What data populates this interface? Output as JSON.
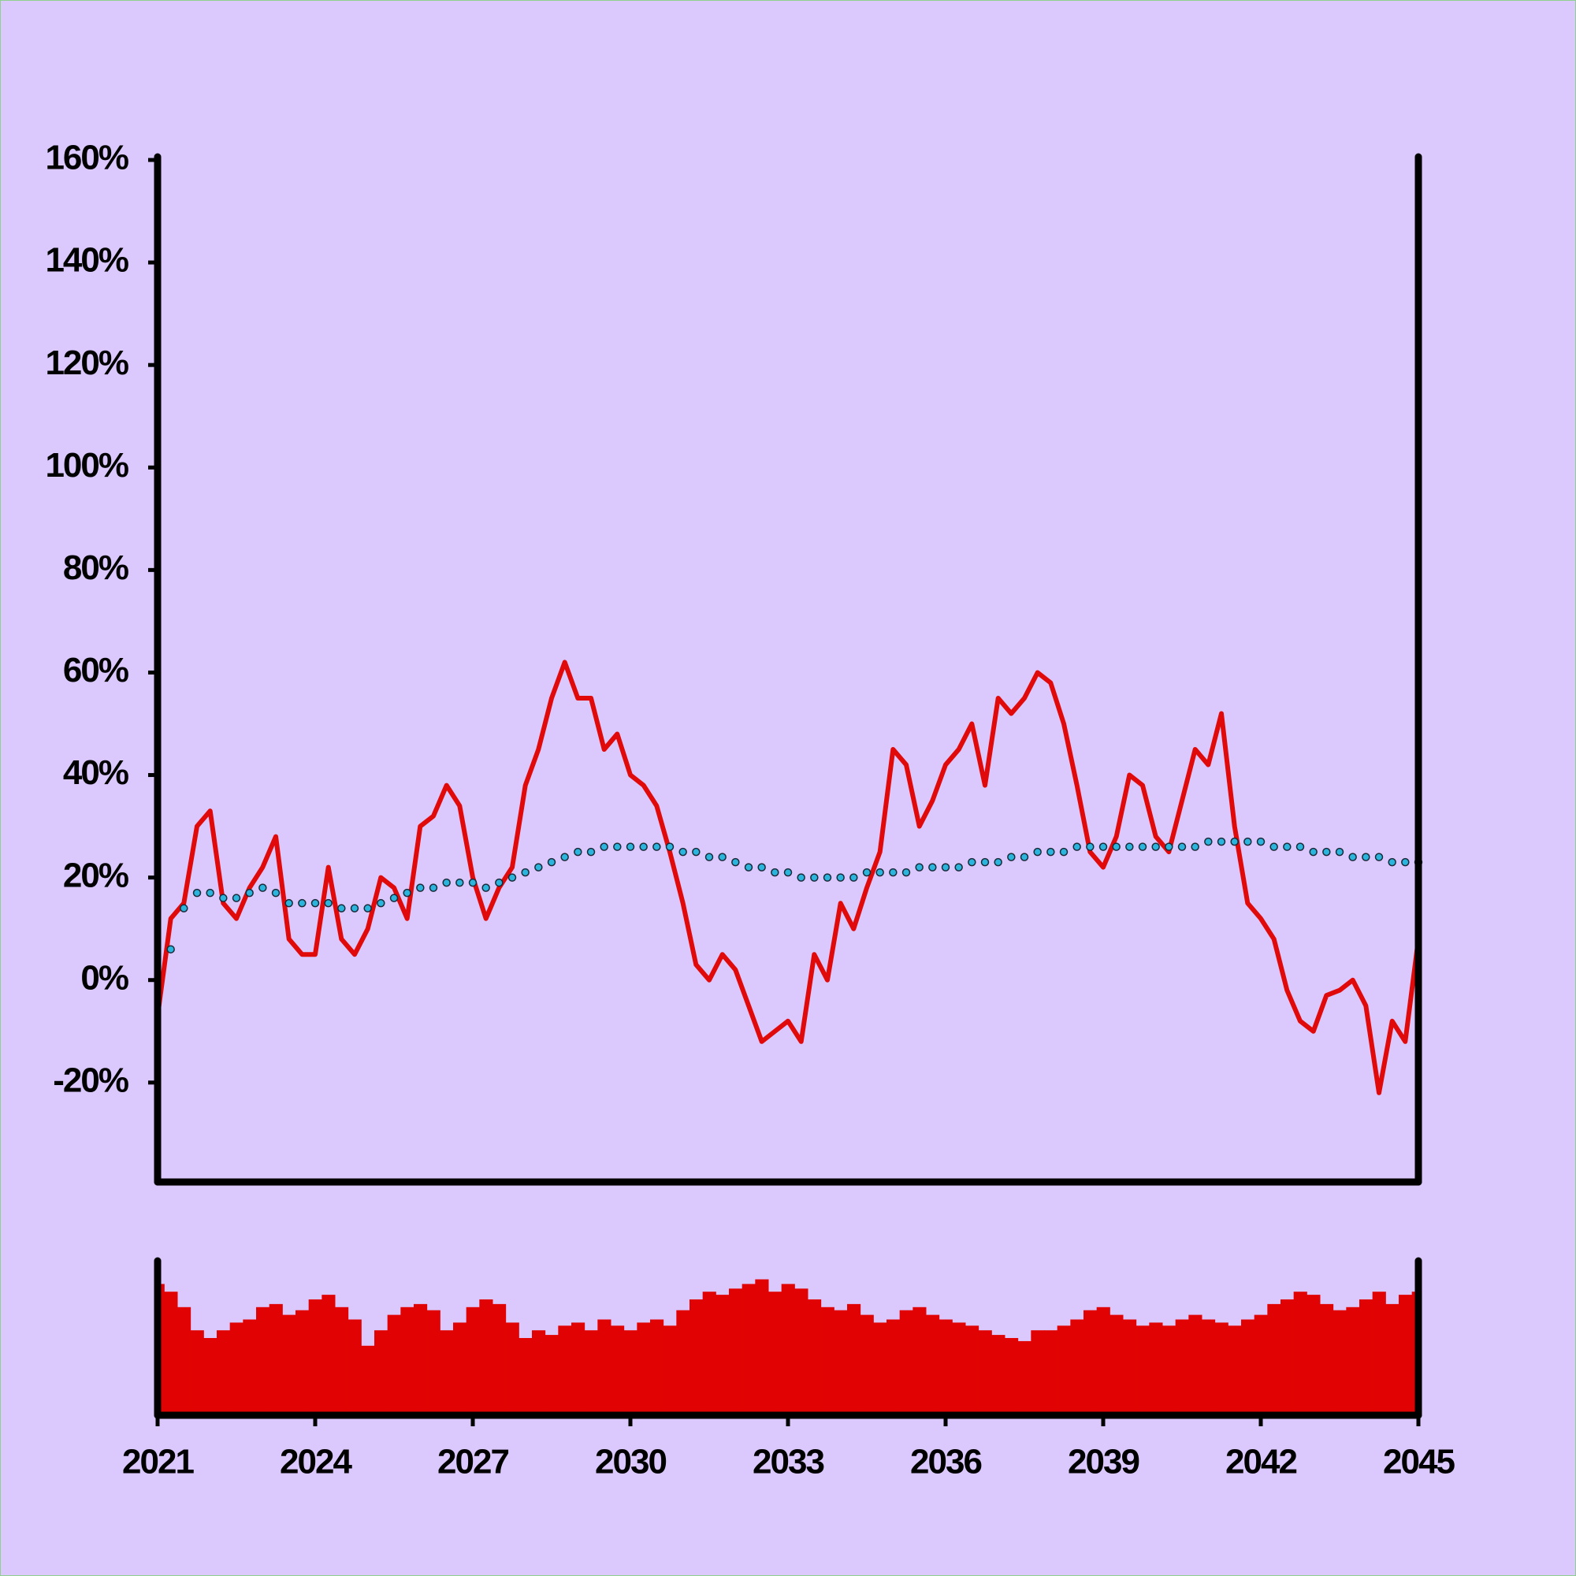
{
  "chart_data": [
    {
      "type": "line",
      "x": [
        2021,
        2021.25,
        2021.5,
        2021.75,
        2022,
        2022.25,
        2022.5,
        2022.75,
        2023,
        2023.25,
        2023.5,
        2023.75,
        2024,
        2024.25,
        2024.5,
        2024.75,
        2025,
        2025.25,
        2025.5,
        2025.75,
        2026,
        2026.25,
        2026.5,
        2026.75,
        2027,
        2027.25,
        2027.5,
        2027.75,
        2028,
        2028.25,
        2028.5,
        2028.75,
        2029,
        2029.25,
        2029.5,
        2029.75,
        2030,
        2030.25,
        2030.5,
        2030.75,
        2031,
        2031.25,
        2031.5,
        2031.75,
        2032,
        2032.25,
        2032.5,
        2032.75,
        2033,
        2033.25,
        2033.5,
        2033.75,
        2034,
        2034.25,
        2034.5,
        2034.75,
        2035,
        2035.25,
        2035.5,
        2035.75,
        2036,
        2036.25,
        2036.5,
        2036.75,
        2037,
        2037.25,
        2037.5,
        2037.75,
        2038,
        2038.25,
        2038.5,
        2038.75,
        2039,
        2039.25,
        2039.5,
        2039.75,
        2040,
        2040.25,
        2040.5,
        2040.75,
        2041,
        2041.25,
        2041.5,
        2041.75,
        2042,
        2042.25,
        2042.5,
        2042.75,
        2043,
        2043.25,
        2043.5,
        2043.75,
        2044,
        2044.25,
        2044.5,
        2044.75,
        2045
      ],
      "series": [
        {
          "color": "#e10a0a",
          "style": "line",
          "values": [
            -7,
            12,
            15,
            30,
            33,
            15,
            12,
            18,
            22,
            28,
            8,
            5,
            5,
            22,
            8,
            5,
            10,
            20,
            18,
            12,
            30,
            32,
            38,
            34,
            20,
            12,
            18,
            22,
            38,
            45,
            55,
            62,
            55,
            55,
            45,
            48,
            40,
            38,
            34,
            25,
            15,
            3,
            0,
            5,
            2,
            -5,
            -12,
            -10,
            -8,
            -12,
            5,
            0,
            15,
            10,
            18,
            25,
            45,
            42,
            30,
            35,
            42,
            45,
            50,
            38,
            55,
            52,
            55,
            60,
            58,
            50,
            38,
            25,
            22,
            28,
            40,
            38,
            28,
            25,
            35,
            45,
            42,
            52,
            30,
            15,
            12,
            8,
            -2,
            -8,
            -10,
            -3,
            -2,
            0,
            -5,
            -22,
            -8,
            -12,
            8
          ]
        },
        {
          "color": "#2bb5dd",
          "style": "dots",
          "values": [
            null,
            6,
            14,
            17,
            17,
            16,
            16,
            17,
            18,
            17,
            15,
            15,
            15,
            15,
            14,
            14,
            14,
            15,
            16,
            17,
            18,
            18,
            19,
            19,
            19,
            18,
            19,
            20,
            21,
            22,
            23,
            24,
            25,
            25,
            26,
            26,
            26,
            26,
            26,
            26,
            25,
            25,
            24,
            24,
            23,
            22,
            22,
            21,
            21,
            20,
            20,
            20,
            20,
            20,
            21,
            21,
            21,
            21,
            22,
            22,
            22,
            22,
            23,
            23,
            23,
            24,
            24,
            25,
            25,
            25,
            26,
            26,
            26,
            26,
            26,
            26,
            26,
            26,
            26,
            26,
            27,
            27,
            27,
            27,
            27,
            26,
            26,
            26,
            25,
            25,
            25,
            24,
            24,
            24,
            23,
            23,
            23
          ]
        }
      ],
      "xlim": [
        2021,
        2045
      ],
      "ylim": [
        -39.4,
        160
      ],
      "yticks": [
        {
          "value": -20,
          "label": "-20%"
        },
        {
          "value": 0,
          "label": "0%"
        },
        {
          "value": 20,
          "label": "20%"
        },
        {
          "value": 40,
          "label": "40%"
        },
        {
          "value": 60,
          "label": "60%"
        },
        {
          "value": 80,
          "label": "80%"
        },
        {
          "value": 100,
          "label": "100%"
        },
        {
          "value": 120,
          "label": "120%"
        },
        {
          "value": 140,
          "label": "140%"
        },
        {
          "value": 160,
          "label": "160%"
        }
      ]
    },
    {
      "type": "bar",
      "color": "#e10303",
      "x": [
        2021,
        2021.25,
        2021.5,
        2021.75,
        2022,
        2022.25,
        2022.5,
        2022.75,
        2023,
        2023.25,
        2023.5,
        2023.75,
        2024,
        2024.25,
        2024.5,
        2024.75,
        2025,
        2025.25,
        2025.5,
        2025.75,
        2026,
        2026.25,
        2026.5,
        2026.75,
        2027,
        2027.25,
        2027.5,
        2027.75,
        2028,
        2028.25,
        2028.5,
        2028.75,
        2029,
        2029.25,
        2029.5,
        2029.75,
        2030,
        2030.25,
        2030.5,
        2030.75,
        2031,
        2031.25,
        2031.5,
        2031.75,
        2032,
        2032.25,
        2032.5,
        2032.75,
        2033,
        2033.25,
        2033.5,
        2033.75,
        2034,
        2034.25,
        2034.5,
        2034.75,
        2035,
        2035.25,
        2035.5,
        2035.75,
        2036,
        2036.25,
        2036.5,
        2036.75,
        2037,
        2037.25,
        2037.5,
        2037.75,
        2038,
        2038.25,
        2038.5,
        2038.75,
        2039,
        2039.25,
        2039.5,
        2039.75,
        2040,
        2040.25,
        2040.5,
        2040.75,
        2041,
        2041.25,
        2041.5,
        2041.75,
        2042,
        2042.25,
        2042.5,
        2042.75,
        2043,
        2043.25,
        2043.5,
        2043.75,
        2044,
        2044.25,
        2044.5,
        2044.75,
        2045
      ],
      "values": [
        85,
        80,
        70,
        55,
        50,
        55,
        60,
        62,
        70,
        72,
        65,
        68,
        75,
        78,
        70,
        62,
        45,
        55,
        65,
        70,
        72,
        68,
        55,
        60,
        70,
        75,
        72,
        60,
        50,
        55,
        52,
        58,
        60,
        55,
        62,
        58,
        55,
        60,
        62,
        58,
        68,
        75,
        80,
        78,
        82,
        85,
        88,
        80,
        85,
        82,
        75,
        70,
        68,
        72,
        65,
        60,
        62,
        68,
        70,
        65,
        62,
        60,
        58,
        55,
        52,
        50,
        48,
        55,
        55,
        58,
        62,
        68,
        70,
        65,
        62,
        58,
        60,
        58,
        62,
        65,
        62,
        60,
        58,
        62,
        65,
        72,
        75,
        80,
        78,
        72,
        68,
        70,
        75,
        80,
        72,
        78,
        80
      ],
      "ylim": [
        0,
        100
      ],
      "xlim": [
        2021,
        2045
      ],
      "xticks": [
        2021,
        2024,
        2027,
        2030,
        2033,
        2036,
        2039,
        2042,
        2045
      ]
    }
  ]
}
